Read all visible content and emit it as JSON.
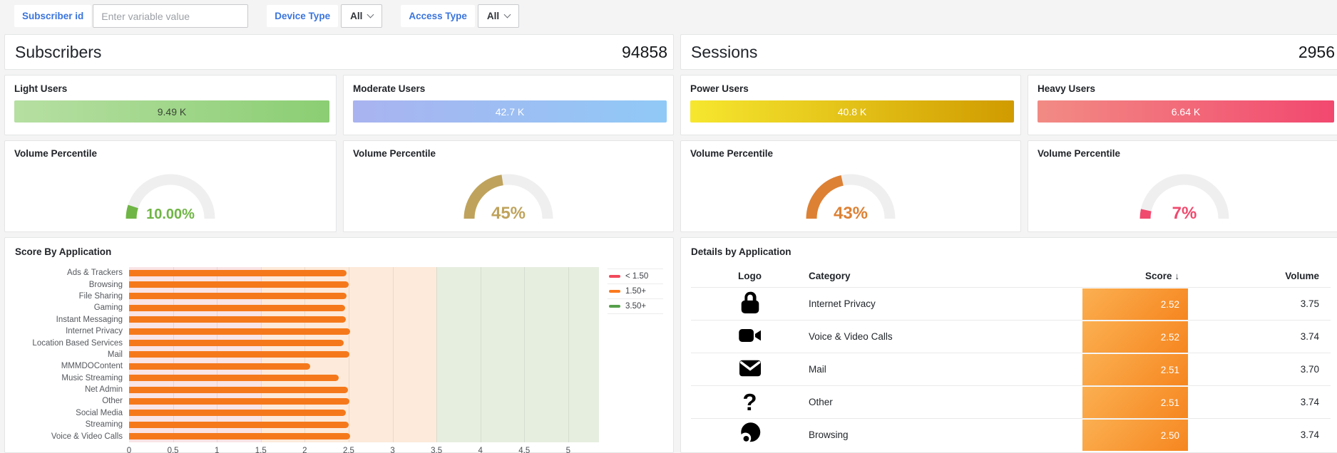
{
  "filters": {
    "subscriber_label": "Subscriber id",
    "subscriber_placeholder": "Enter variable value",
    "device_label": "Device Type",
    "device_value": "All",
    "access_label": "Access Type",
    "access_value": "All"
  },
  "panels": {
    "subscribers": {
      "title": "Subscribers",
      "value": "94858"
    },
    "sessions": {
      "title": "Sessions",
      "value": "2956"
    }
  },
  "user_cards": [
    {
      "label": "Light Users",
      "value": "9.49 K",
      "gradient_start": "#b6dfa2",
      "gradient_end": "#8bce73",
      "text_color": "#3a4536"
    },
    {
      "label": "Moderate Users",
      "value": "42.7 K",
      "gradient_start": "#a9b3f0",
      "gradient_end": "#90c9f6",
      "text_color": "#ffffff"
    },
    {
      "label": "Power Users",
      "value": "40.8 K",
      "gradient_start": "#f6e72f",
      "gradient_end": "#d09b00",
      "text_color": "#ffffff"
    },
    {
      "label": "Heavy Users",
      "value": "6.64 K",
      "gradient_start": "#f28b84",
      "gradient_end": "#f2486f",
      "text_color": "#ffffff"
    }
  ],
  "gauges": [
    {
      "title": "Volume Percentile",
      "value": "10.00%",
      "percent": 10,
      "color": "#6fb545"
    },
    {
      "title": "Volume Percentile",
      "value": "45%",
      "percent": 45,
      "color": "#bfa35c"
    },
    {
      "title": "Volume Percentile",
      "value": "43%",
      "percent": 43,
      "color": "#dd8135"
    },
    {
      "title": "Volume Percentile",
      "value": "7%",
      "percent": 7,
      "color": "#f04a6e"
    }
  ],
  "chart_data": {
    "type": "bar",
    "orientation": "horizontal",
    "title": "Score By Application",
    "categories": [
      "Ads & Trackers",
      "Browsing",
      "File Sharing",
      "Gaming",
      "Instant Messaging",
      "Internet Privacy",
      "Location Based Services",
      "Mail",
      "MMMDOContent",
      "Music Streaming",
      "Net Admin",
      "Other",
      "Social Media",
      "Streaming",
      "Voice & Video Calls"
    ],
    "values": [
      2.48,
      2.5,
      2.48,
      2.46,
      2.47,
      2.52,
      2.44,
      2.51,
      2.06,
      2.39,
      2.49,
      2.51,
      2.47,
      2.5,
      2.52
    ],
    "x_ticks": [
      0,
      0.5,
      1,
      1.5,
      2,
      2.5,
      3,
      3.5,
      4,
      4.5,
      5
    ],
    "x_max": 5.35,
    "bar_color": "#f5791b",
    "bands": [
      {
        "from": 0,
        "to": 1.5,
        "color": "#f9e4e6"
      },
      {
        "from": 1.5,
        "to": 3.5,
        "color": "#fdeada"
      },
      {
        "from": 3.5,
        "to": 5.35,
        "color": "#e6eee0"
      }
    ],
    "legend": [
      {
        "label": "< 1.50",
        "color": "#f2495c"
      },
      {
        "label": "1.50+",
        "color": "#fb7a1e"
      },
      {
        "label": "3.50+",
        "color": "#56a04c"
      }
    ]
  },
  "details_table": {
    "title": "Details by Application",
    "columns": [
      "Logo",
      "Category",
      "Score",
      "Volume"
    ],
    "sort_column": "Score",
    "score_cell_gradient": [
      "#fbb052",
      "#f6861f"
    ],
    "rows": [
      {
        "icon": "lock-icon",
        "category": "Internet Privacy",
        "score": "2.52",
        "volume": "3.75"
      },
      {
        "icon": "video-camera-icon",
        "category": "Voice & Video Calls",
        "score": "2.52",
        "volume": "3.74"
      },
      {
        "icon": "mail-icon",
        "category": "Mail",
        "score": "2.51",
        "volume": "3.70"
      },
      {
        "icon": "question-mark-icon",
        "category": "Other",
        "score": "2.51",
        "volume": "3.74"
      },
      {
        "icon": "browser-icon",
        "category": "Browsing",
        "score": "2.50",
        "volume": "3.74"
      }
    ]
  }
}
